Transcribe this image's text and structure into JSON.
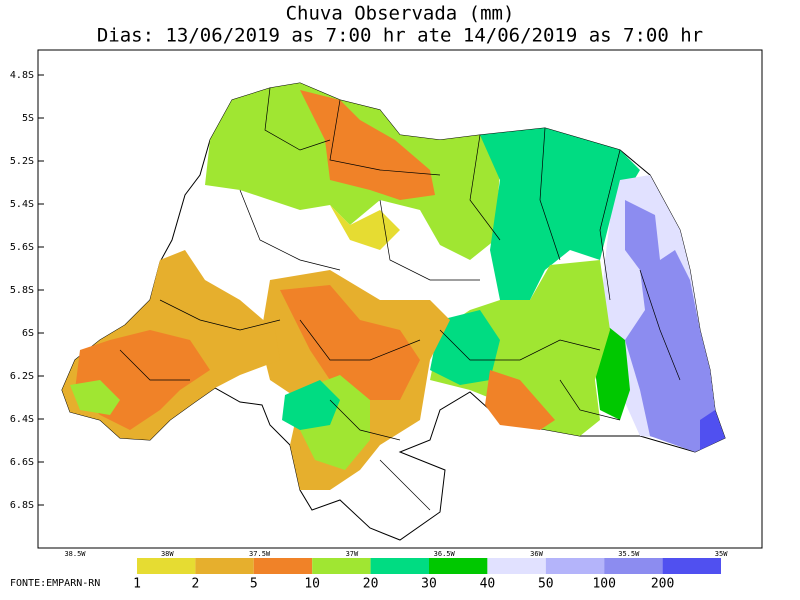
{
  "header": {
    "title_lines": [
      "Chuva Observada (mm)",
      "Dias: 13/06/2019 as 7:00 hr ate 14/06/2019 as 7:00 hr"
    ]
  },
  "axes": {
    "lat_labels": [
      "4.8S",
      "5S",
      "5.2S",
      "5.4S",
      "5.6S",
      "5.8S",
      "6S",
      "6.2S",
      "6.4S",
      "6.6S",
      "6.8S"
    ],
    "lon_labels": [
      "38.5W",
      "38W",
      "37.5W",
      "37W",
      "36.5W",
      "36W",
      "35.5W",
      "35W"
    ]
  },
  "legend": {
    "labels": [
      "1",
      "2",
      "5",
      "10",
      "20",
      "30",
      "40",
      "50",
      "100",
      "200"
    ],
    "colors": [
      "#e6dc32",
      "#e6af2d",
      "#f08228",
      "#a0e632",
      "#00dc82",
      "#00c800",
      "#e1e1ff",
      "#b4b4fa",
      "#8c8cf0",
      "#5050f0"
    ]
  },
  "source": "FONTE:EMPARN-RN"
}
